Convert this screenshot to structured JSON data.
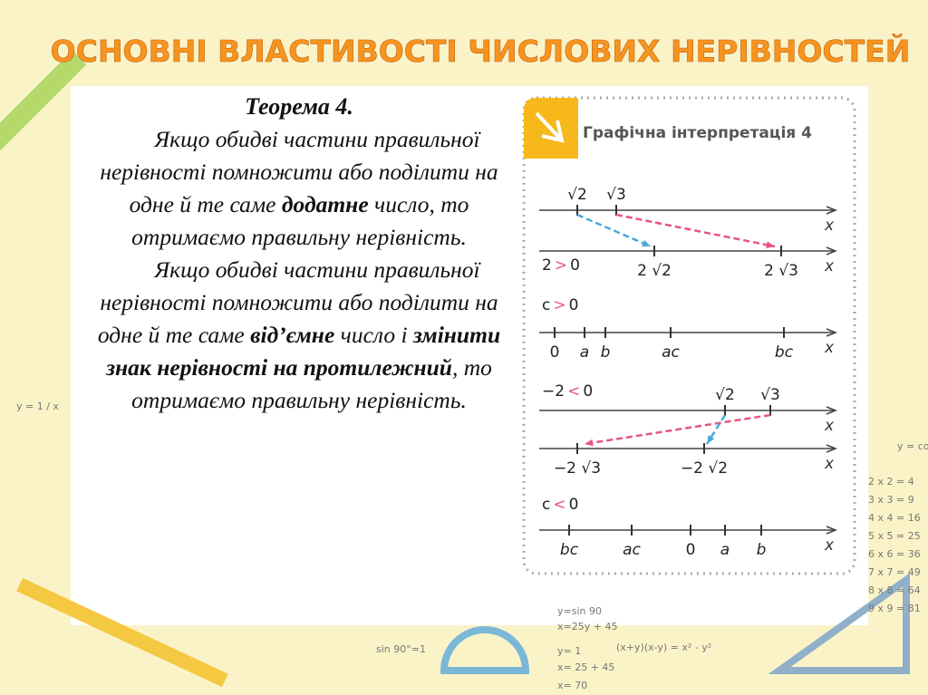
{
  "header": {
    "title": "ОСНОВНІ ВЛАСТИВОСТІ ЧИСЛОВИХ НЕРІВНОСТЕЙ"
  },
  "theorem": {
    "heading": "Теорема 4.",
    "paragraphs": [
      [
        {
          "text": "Якщо обидві частини правильної нерівності помножити або поділити на одне й те саме ",
          "bold": false
        },
        {
          "text": "додатне",
          "bold": true
        },
        {
          "text": " число, то отримаємо правильну нерівність.",
          "bold": false
        }
      ],
      [
        {
          "text": "Якщо обидві частини правильної нерівності помножити або поділити на одне й те саме ",
          "bold": false
        },
        {
          "text": "від’ємне",
          "bold": true
        },
        {
          "text": " число і ",
          "bold": false
        },
        {
          "text": "змінити знак нерівності на протилежний",
          "bold": true
        },
        {
          "text": ", то отримаємо правильну нерівність.",
          "bold": false
        }
      ]
    ]
  },
  "panel": {
    "title": "Графічна інтерпретація 4",
    "conditions": [
      {
        "left": "2",
        "sign": ">",
        "right": "0"
      },
      {
        "left": "c",
        "sign": ">",
        "right": "0"
      },
      {
        "left": "−2",
        "sign": "<",
        "right": "0"
      },
      {
        "left": "c",
        "sign": "<",
        "right": "0"
      }
    ],
    "lines": [
      {
        "labels": [
          "√2",
          "√3"
        ],
        "axis_label": "x"
      },
      {
        "labels": [
          "2 √2",
          "2 √3"
        ],
        "axis_label": "x"
      },
      {
        "labels": [
          "0",
          "a",
          "b",
          "ac",
          "bc"
        ],
        "axis_label": "x"
      },
      {
        "labels": [
          "√2",
          "√3"
        ],
        "axis_label": "x"
      },
      {
        "labels": [
          "−2 √3",
          "−2 √2"
        ],
        "axis_label": "x"
      },
      {
        "labels": [
          "bc",
          "ac",
          "0",
          "a",
          "b"
        ],
        "axis_label": "x"
      }
    ]
  },
  "decorations": [
    "y = 1 / x",
    "y = cos x",
    "2 x 2 = 4",
    "3 x 3 = 9",
    "4 x 4 = 16",
    "5 x 5 = 25",
    "6 x 6 = 36",
    "7 x 7 = 49",
    "8 x 8 = 64",
    "9 x 9 = 81",
    "sin 90°=1",
    "y=sin 90",
    "x=25y + 45",
    "y= 1",
    "x= 25 + 45",
    "x= 70",
    "(x+y)(x-y) = x² - y²"
  ]
}
